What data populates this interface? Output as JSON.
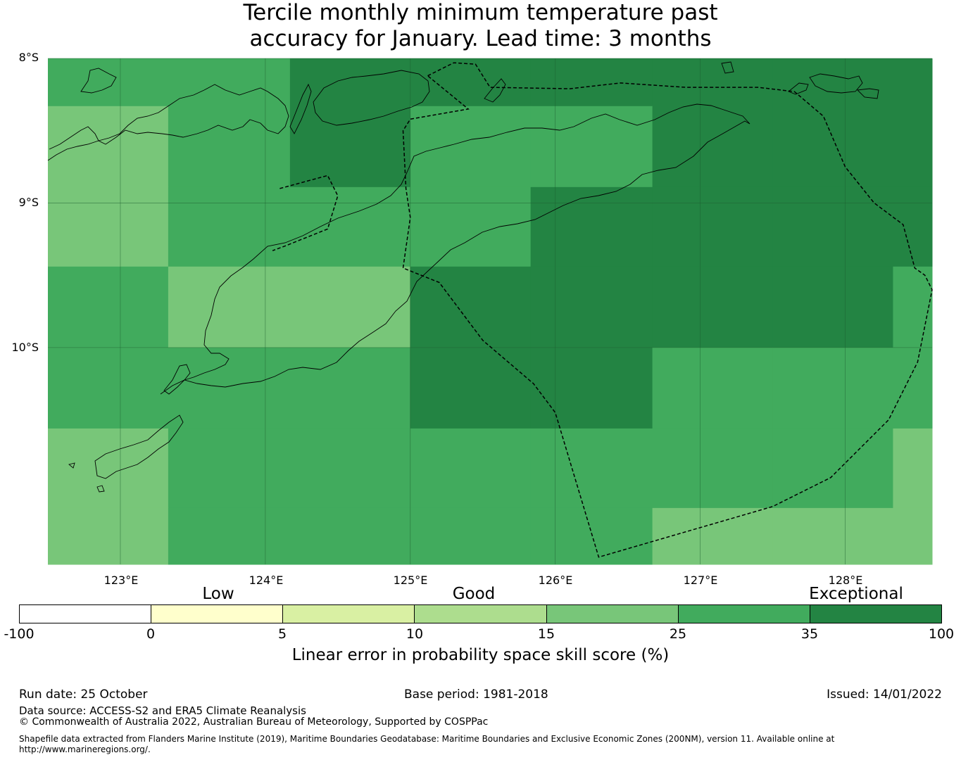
{
  "title": {
    "line1": "Tercile monthly minimum temperature past",
    "line2": "accuracy for January. Lead time: 3 months"
  },
  "map": {
    "lat_labels": [
      "8°S",
      "9°S",
      "10°S"
    ],
    "lon_labels": [
      "123°E",
      "124°E",
      "125°E",
      "126°E",
      "127°E",
      "128°E"
    ],
    "lon_range": [
      122.5,
      128.6
    ],
    "lat_range": [
      -8.0,
      -11.5
    ],
    "skill_grid": {
      "col_edges": [
        122.5,
        123.33,
        124.17,
        125.0,
        125.83,
        126.67,
        127.5,
        128.33,
        128.6
      ],
      "row_edges": [
        -8.0,
        -8.33,
        -8.89,
        -9.44,
        -10.0,
        -10.56,
        -11.11,
        -11.5
      ],
      "cells": [
        [
          25,
          25,
          35,
          35,
          35,
          35,
          35,
          35
        ],
        [
          15,
          25,
          35,
          25,
          25,
          35,
          35,
          35
        ],
        [
          15,
          25,
          25,
          25,
          35,
          35,
          35,
          35
        ],
        [
          25,
          15,
          15,
          35,
          35,
          35,
          35,
          25
        ],
        [
          25,
          25,
          25,
          35,
          35,
          25,
          25,
          25
        ],
        [
          15,
          25,
          25,
          25,
          25,
          25,
          25,
          15
        ],
        [
          15,
          25,
          25,
          25,
          25,
          15,
          15,
          15
        ]
      ]
    },
    "eez_boundary": [
      [
        125.12,
        -8.12
      ],
      [
        125.3,
        -8.03
      ],
      [
        125.45,
        -8.04
      ],
      [
        125.55,
        -8.2
      ],
      [
        126.1,
        -8.21
      ],
      [
        126.45,
        -8.17
      ],
      [
        126.9,
        -8.2
      ],
      [
        127.4,
        -8.2
      ],
      [
        127.65,
        -8.23
      ],
      [
        127.85,
        -8.4
      ],
      [
        128.0,
        -8.75
      ],
      [
        128.2,
        -9.0
      ],
      [
        128.4,
        -9.15
      ],
      [
        128.48,
        -9.45
      ],
      [
        128.55,
        -9.5
      ],
      [
        128.6,
        -9.6
      ],
      [
        128.5,
        -10.1
      ],
      [
        128.3,
        -10.5
      ],
      [
        127.9,
        -10.9
      ],
      [
        127.5,
        -11.1
      ],
      [
        126.3,
        -11.45
      ],
      [
        126.0,
        -10.45
      ],
      [
        125.85,
        -10.25
      ],
      [
        125.5,
        -9.95
      ],
      [
        125.2,
        -9.55
      ],
      [
        124.95,
        -9.45
      ],
      [
        125.0,
        -9.1
      ],
      [
        124.97,
        -8.9
      ],
      [
        124.95,
        -8.5
      ],
      [
        125.0,
        -8.42
      ],
      [
        125.4,
        -8.35
      ]
    ],
    "oecusse_boundary": [
      [
        124.1,
        -8.9
      ],
      [
        124.43,
        -8.81
      ],
      [
        124.5,
        -8.95
      ],
      [
        124.43,
        -9.18
      ],
      [
        124.13,
        -9.3
      ],
      [
        124.05,
        -9.33
      ]
    ]
  },
  "colorbar": {
    "category_labels": {
      "low": "Low",
      "good": "Good",
      "exceptional": "Exceptional"
    },
    "segments": [
      {
        "from": -100,
        "to": 0,
        "color": "#ffffff"
      },
      {
        "from": 0,
        "to": 5,
        "color": "#ffffcc"
      },
      {
        "from": 5,
        "to": 10,
        "color": "#d9f0a3"
      },
      {
        "from": 10,
        "to": 15,
        "color": "#addd8e"
      },
      {
        "from": 15,
        "to": 25,
        "color": "#78c679"
      },
      {
        "from": 25,
        "to": 35,
        "color": "#41ab5d"
      },
      {
        "from": 35,
        "to": 100,
        "color": "#238443"
      }
    ],
    "ticks": [
      "-100",
      "0",
      "5",
      "10",
      "15",
      "25",
      "35",
      "100"
    ],
    "label": "Linear error in probability space skill score (%)"
  },
  "footer": {
    "run_date": "Run date: 25 October",
    "base_period": "Base period: 1981-2018",
    "issued": "Issued: 14/01/2022",
    "data_source": "Data source: ACCESS-S2 and ERA5 Climate Reanalysis",
    "copyright": "© Commonwealth of Australia 2022, Australian Bureau of Meteorology, Supported by COSPPac",
    "shapefile_line1": "Shapefile data extracted from Flanders Marine Institute (2019), Maritime Boundaries Geodatabase: Maritime Boundaries and Exclusive Economic Zones (200NM), version 11. Available online at",
    "shapefile_line2": "http://www.marineregions.org/."
  }
}
